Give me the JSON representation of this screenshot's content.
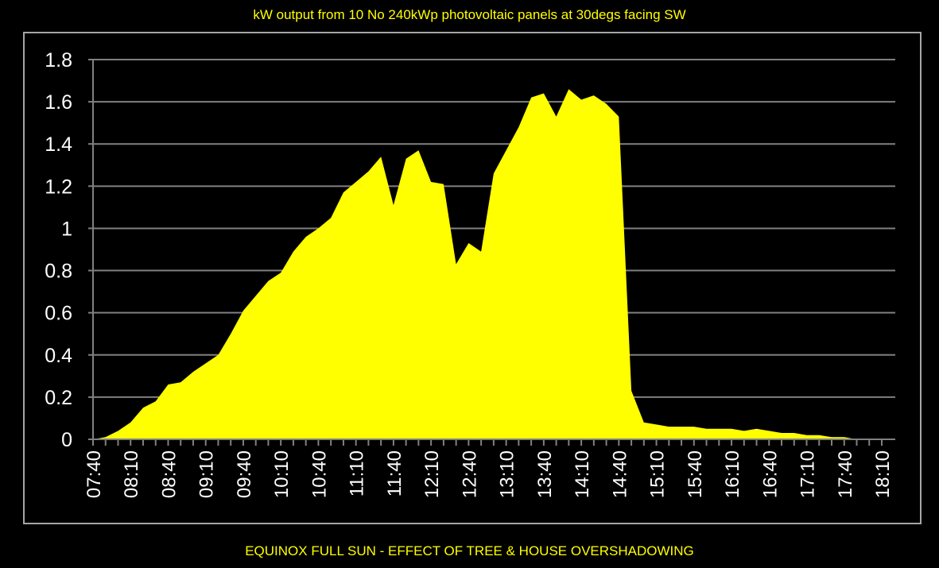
{
  "title": "kW output from 10 No 240kWp photovoltaic panels at 30degs facing SW",
  "caption": "EQUINOX FULL SUN - EFFECT OF TREE & HOUSE OVERSHADOWING",
  "colors": {
    "background": "#000000",
    "area_fill": "#ffff00",
    "text": "#ffffff",
    "title_text": "#ffff00",
    "gridline": "#808080",
    "frame": "#a6a6a6"
  },
  "chart_data": {
    "type": "area",
    "title": "kW output from 10 No 240kWp photovoltaic panels at 30degs facing SW",
    "xlabel": "",
    "ylabel": "",
    "ylim": [
      0,
      1.8
    ],
    "yticks": [
      0,
      0.2,
      0.4,
      0.6,
      0.8,
      1,
      1.2,
      1.4,
      1.6,
      1.8
    ],
    "ytick_labels": [
      "0",
      "0.2",
      "0.4",
      "0.6",
      "0.8",
      "1",
      "1.2",
      "1.4",
      "1.6",
      "1.8"
    ],
    "x_interval_minutes": 10,
    "x_tick_labels": [
      "07:40",
      "08:10",
      "08:40",
      "09:10",
      "09:40",
      "10:10",
      "10:40",
      "11:10",
      "11:40",
      "12:10",
      "12:40",
      "13:10",
      "13:40",
      "14:10",
      "14:40",
      "15:10",
      "15:40",
      "16:10",
      "16:40",
      "17:10",
      "17:40",
      "18:10"
    ],
    "grid": true,
    "legend": "none",
    "series": [
      {
        "x": [
          "07:40",
          "07:50",
          "08:00",
          "08:10",
          "08:20",
          "08:30",
          "08:40",
          "08:50",
          "09:00",
          "09:10",
          "09:20",
          "09:30",
          "09:40",
          "09:50",
          "10:00",
          "10:10",
          "10:20",
          "10:30",
          "10:40",
          "10:50",
          "11:00",
          "11:10",
          "11:20",
          "11:30",
          "11:40",
          "11:50",
          "12:00",
          "12:10",
          "12:20",
          "12:30",
          "12:40",
          "12:50",
          "13:00",
          "13:10",
          "13:20",
          "13:30",
          "13:40",
          "13:50",
          "14:00",
          "14:10",
          "14:20",
          "14:30",
          "14:40",
          "14:50",
          "15:00",
          "15:10",
          "15:20",
          "15:30",
          "15:40",
          "15:50",
          "16:00",
          "16:10",
          "16:20",
          "16:30",
          "16:40",
          "16:50",
          "17:00",
          "17:10",
          "17:20",
          "17:30",
          "17:40",
          "17:50",
          "18:00",
          "18:10"
        ],
        "values": [
          0,
          0.01,
          0.04,
          0.08,
          0.15,
          0.18,
          0.26,
          0.27,
          0.32,
          0.36,
          0.4,
          0.5,
          0.61,
          0.68,
          0.75,
          0.79,
          0.89,
          0.96,
          1.0,
          1.05,
          1.17,
          1.22,
          1.27,
          1.34,
          1.11,
          1.33,
          1.37,
          1.22,
          1.21,
          0.83,
          0.93,
          0.89,
          1.26,
          1.37,
          1.48,
          1.62,
          1.64,
          1.53,
          1.66,
          1.61,
          1.63,
          1.59,
          1.53,
          0.23,
          0.08,
          0.07,
          0.06,
          0.06,
          0.06,
          0.05,
          0.05,
          0.05,
          0.04,
          0.05,
          0.04,
          0.03,
          0.03,
          0.02,
          0.02,
          0.01,
          0.01,
          0,
          0,
          0
        ]
      }
    ]
  }
}
